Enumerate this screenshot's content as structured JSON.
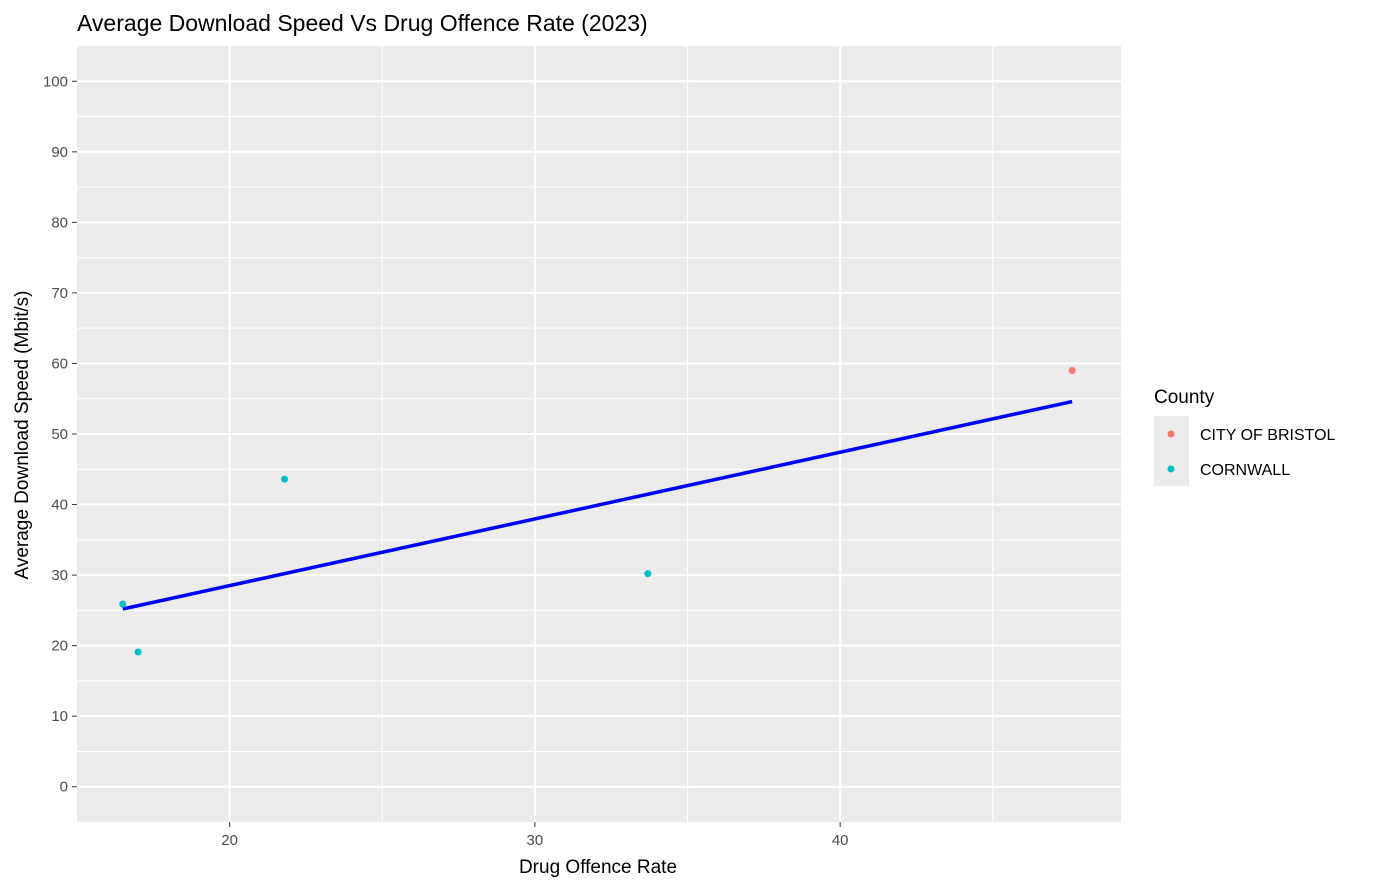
{
  "chart_data": {
    "type": "scatter",
    "title": "Average Download Speed Vs Drug Offence Rate (2023)",
    "xlabel": "Drug Offence Rate",
    "ylabel": "Average Download Speed (Mbit/s)",
    "xlim": [
      15,
      49.2
    ],
    "ylim": [
      -5,
      105
    ],
    "x_ticks": [
      20,
      30,
      40
    ],
    "y_ticks": [
      0,
      10,
      20,
      30,
      40,
      50,
      60,
      70,
      80,
      90,
      100
    ],
    "x_tick_labels": [
      "20",
      "30",
      "40"
    ],
    "y_tick_labels": [
      "0",
      "10",
      "20",
      "30",
      "40",
      "50",
      "60",
      "70",
      "80",
      "90",
      "100"
    ],
    "grid": true,
    "panel_background": "#ebebeb",
    "legend": {
      "title": "County",
      "position": "right",
      "entries": [
        {
          "name": "CITY OF BRISTOL",
          "color": "#f8766d"
        },
        {
          "name": "CORNWALL",
          "color": "#00bfc4"
        }
      ]
    },
    "series": [
      {
        "name": "CITY OF BRISTOL",
        "color": "#f8766d",
        "points": [
          {
            "x": 47.6,
            "y": 59.0
          }
        ]
      },
      {
        "name": "CORNWALL",
        "color": "#00bfc4",
        "points": [
          {
            "x": 16.5,
            "y": 25.9
          },
          {
            "x": 17.0,
            "y": 19.1
          },
          {
            "x": 21.8,
            "y": 43.6
          },
          {
            "x": 33.7,
            "y": 30.2
          }
        ]
      }
    ],
    "trend_line": {
      "color": "#0000ff",
      "from": {
        "x": 16.5,
        "y": 25.2
      },
      "to": {
        "x": 47.6,
        "y": 54.6
      }
    }
  }
}
